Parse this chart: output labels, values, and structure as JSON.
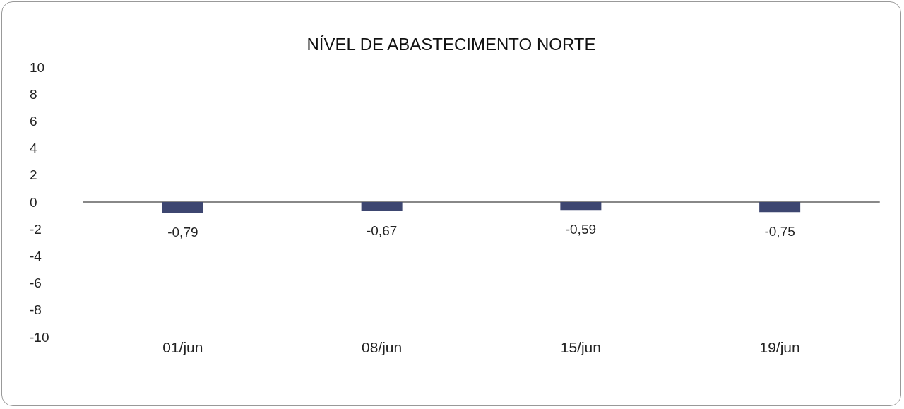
{
  "chart_data": {
    "type": "bar",
    "title": "NÍVEL DE ABASTECIMENTO NORTE",
    "categories": [
      "01/jun",
      "08/jun",
      "15/jun",
      "19/jun"
    ],
    "series": [
      {
        "color": "#3d4670",
        "values": [
          -0.79,
          -0.67,
          -0.59,
          -0.75
        ],
        "value_labels": [
          "-0,79",
          "-0,67",
          "-0,59",
          "-0,75"
        ]
      }
    ],
    "ylim": [
      -10,
      10
    ],
    "yticks": [
      -10,
      -8,
      -6,
      -4,
      -2,
      0,
      2,
      4,
      6,
      8,
      10
    ]
  }
}
